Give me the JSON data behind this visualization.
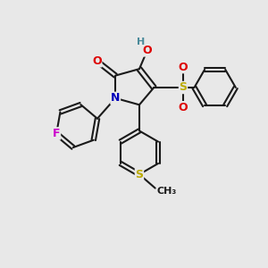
{
  "bg_color": "#e8e8e8",
  "bond_color": "#1a1a1a",
  "bond_width": 1.5,
  "atom_colors": {
    "O": "#dd0000",
    "N": "#0000bb",
    "F": "#cc00cc",
    "S": "#bbaa00",
    "H": "#4a8a9a",
    "C": "#1a1a1a"
  },
  "font_size": 9.0,
  "font_size_h": 8.0,
  "font_size_methyl": 8.0
}
